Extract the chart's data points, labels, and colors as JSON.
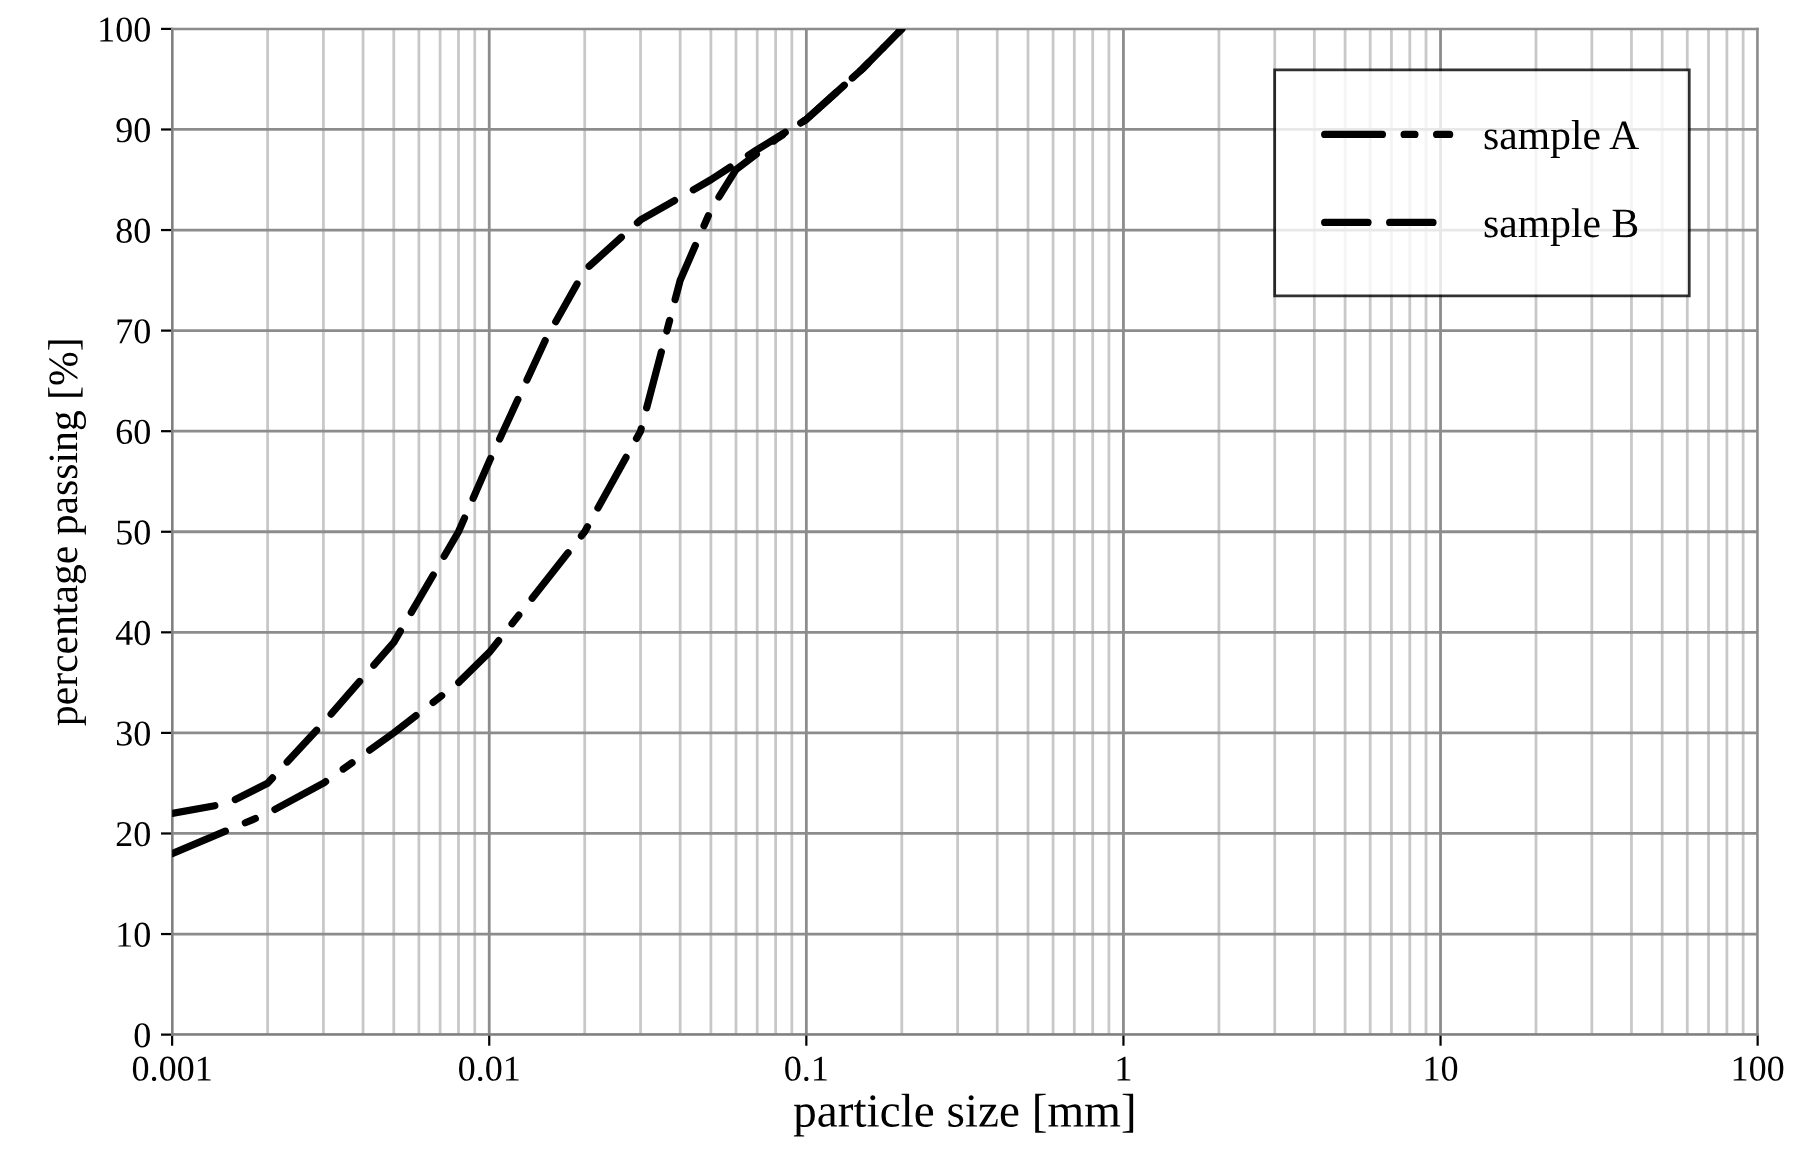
{
  "chart_data": {
    "type": "line",
    "xlabel": "particle size [mm]",
    "ylabel": "percentage passing [%]",
    "log": "x",
    "grid": true,
    "legend": "top right",
    "marker": "none",
    "xlim": [
      0.001,
      100
    ],
    "xticks": [
      {
        "value": 0.001,
        "label": "0.001"
      },
      {
        "value": 0.01,
        "label": "0.01"
      },
      {
        "value": 0.1,
        "label": "0.1"
      },
      {
        "value": 1,
        "label": "1"
      },
      {
        "value": 10,
        "label": "10"
      },
      {
        "value": 100,
        "label": "100"
      }
    ],
    "ylim": [
      0,
      100
    ],
    "yticks": [
      0,
      10,
      20,
      30,
      40,
      50,
      60,
      70,
      80,
      90,
      100
    ],
    "series": [
      {
        "name": "sample A",
        "color": "#000000",
        "line_style": "dashdot",
        "x": [
          0.001,
          0.002,
          0.003,
          0.005,
          0.008,
          0.01,
          0.02,
          0.03,
          0.04,
          0.05,
          0.06,
          0.08,
          0.1,
          0.15,
          0.2
        ],
        "values": [
          18,
          22,
          25,
          30,
          35,
          38,
          50,
          60,
          75,
          82,
          86,
          89,
          91,
          96,
          100
        ]
      },
      {
        "name": "sample B",
        "color": "#000000",
        "line_style": "dashed",
        "x": [
          0.001,
          0.0015,
          0.002,
          0.003,
          0.005,
          0.008,
          0.01,
          0.015,
          0.02,
          0.03,
          0.05,
          0.07,
          0.1,
          0.15,
          0.2
        ],
        "values": [
          22,
          23,
          25,
          31,
          39,
          50,
          57,
          69,
          76,
          81,
          85,
          88,
          91,
          96,
          100
        ]
      }
    ]
  }
}
